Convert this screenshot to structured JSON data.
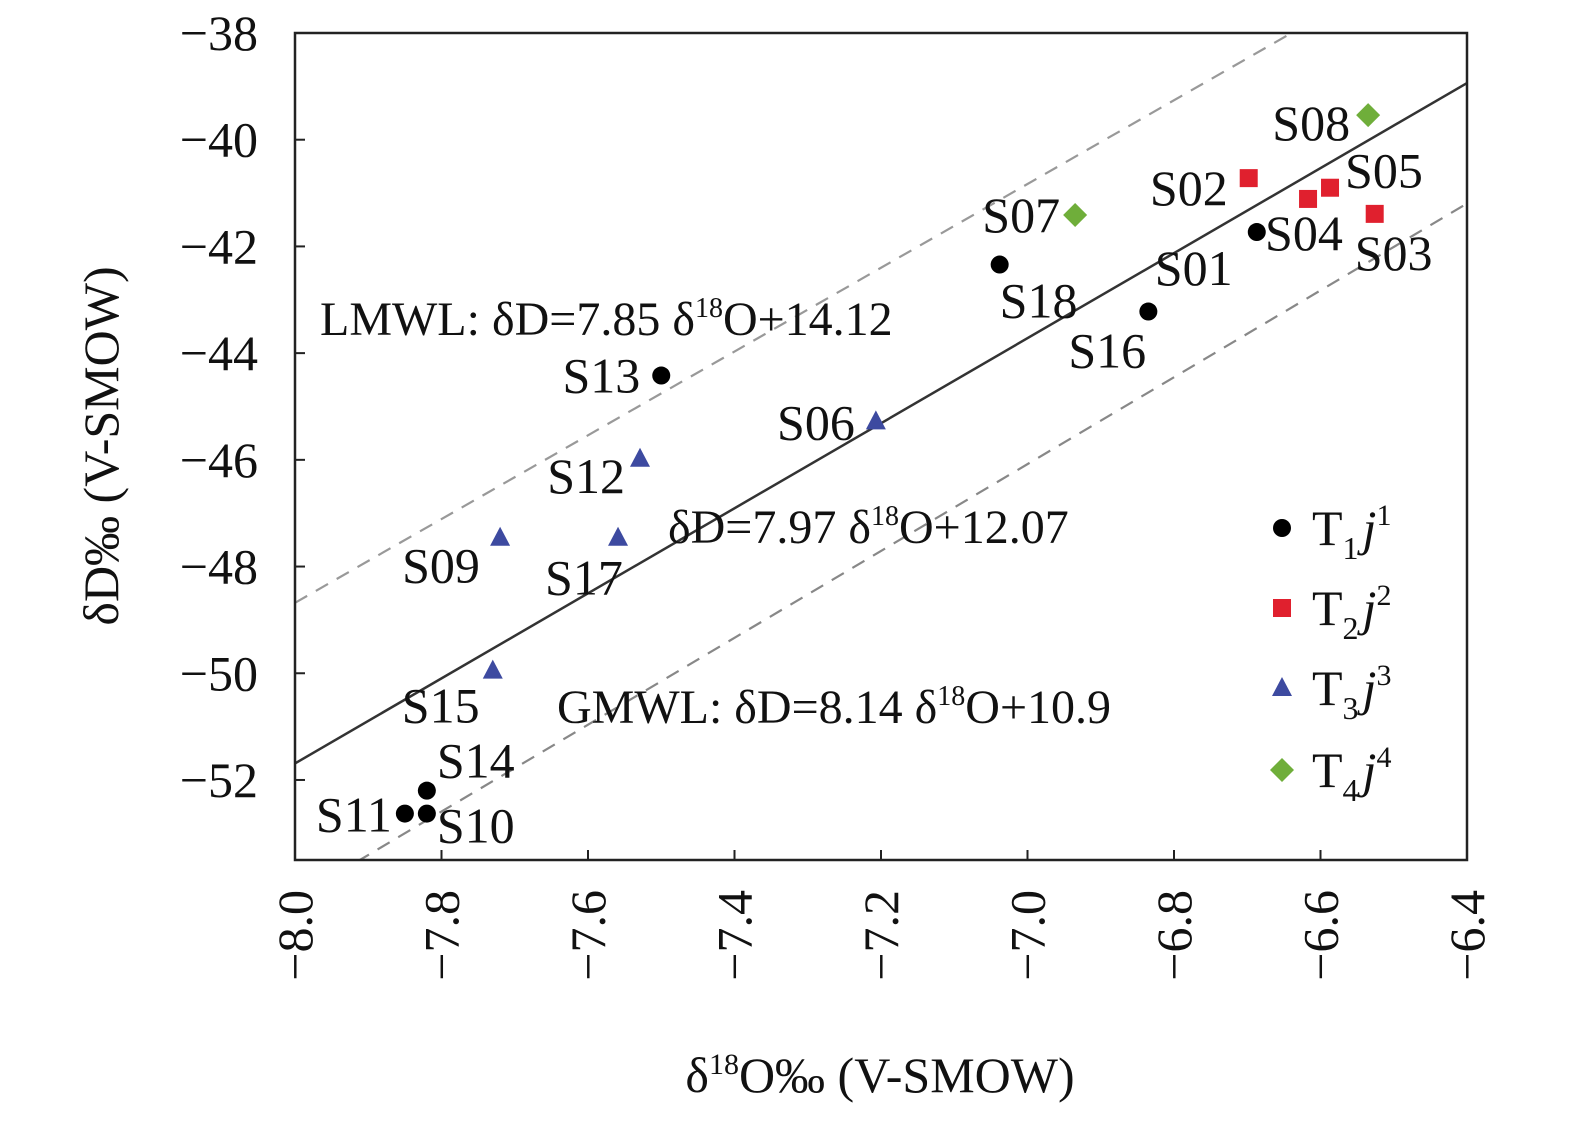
{
  "chart_data": {
    "type": "scatter",
    "xlabel": "δ18O‰ (V-SMOW)",
    "xlabel_parts": {
      "delta": "δ",
      "sup": "18",
      "rest": "O‰ (V-SMOW)"
    },
    "ylabel": "δD‰ (V-SMOW)",
    "xlim": [
      -8.0,
      -6.4
    ],
    "ylim": [
      -53.5,
      -38
    ],
    "xticks": [
      "−8.0",
      "−7.8",
      "−7.6",
      "−7.4",
      "−7.2",
      "−7.0",
      "−6.8",
      "−6.6",
      "−6.4"
    ],
    "xtick_values": [
      -8.0,
      -7.8,
      -7.6,
      -7.4,
      -7.2,
      -7.0,
      -6.8,
      -6.6,
      -6.4
    ],
    "yticks": [
      "−38",
      "−40",
      "−42",
      "−44",
      "−46",
      "−48",
      "−50",
      "−52"
    ],
    "ytick_values": [
      -38,
      -40,
      -42,
      -44,
      -46,
      -48,
      -50,
      -52
    ],
    "grid": false,
    "legend_position": "right",
    "series": [
      {
        "name": "T1j1",
        "base": "T",
        "sub": "1",
        "it": "j",
        "sup": "1",
        "marker": "circle",
        "color": "#000000",
        "points": [
          {
            "label": "S01",
            "x": -6.687,
            "y": -41.73
          },
          {
            "label": "S18",
            "x": -7.038,
            "y": -42.34
          },
          {
            "label": "S16",
            "x": -6.835,
            "y": -43.22
          },
          {
            "label": "S13",
            "x": -7.5,
            "y": -44.42
          },
          {
            "label": "S14",
            "x": -7.82,
            "y": -52.2
          },
          {
            "label": "S10",
            "x": -7.82,
            "y": -52.63
          },
          {
            "label": "S11",
            "x": -7.85,
            "y": -52.63
          }
        ]
      },
      {
        "name": "T2j2",
        "base": "T",
        "sub": "2",
        "it": "j",
        "sup": "2",
        "marker": "square",
        "color": "#e0202e",
        "points": [
          {
            "label": "S02",
            "x": -6.698,
            "y": -40.72
          },
          {
            "label": "S05",
            "x": -6.587,
            "y": -40.9
          },
          {
            "label": "S04",
            "x": -6.617,
            "y": -41.11
          },
          {
            "label": "S03",
            "x": -6.526,
            "y": -41.39
          }
        ]
      },
      {
        "name": "T3j3",
        "base": "T",
        "sub": "3",
        "it": "j",
        "sup": "3",
        "marker": "triangle",
        "color": "#3d4aa0",
        "points": [
          {
            "label": "S06",
            "x": -7.207,
            "y": -45.28
          },
          {
            "label": "S12",
            "x": -7.529,
            "y": -45.98
          },
          {
            "label": "S17",
            "x": -7.559,
            "y": -47.46
          },
          {
            "label": "S09",
            "x": -7.72,
            "y": -47.46
          },
          {
            "label": "S15",
            "x": -7.73,
            "y": -49.95
          }
        ]
      },
      {
        "name": "T4j4",
        "base": "T",
        "sub": "4",
        "it": "j",
        "sup": "4",
        "marker": "diamond",
        "color": "#6fae3a",
        "points": [
          {
            "label": "S08",
            "x": -6.535,
            "y": -39.54
          },
          {
            "label": "S07",
            "x": -6.935,
            "y": -41.41
          }
        ]
      }
    ],
    "lines": [
      {
        "name": "fit",
        "slope": 7.97,
        "intercept": 12.07,
        "style": "solid",
        "color": "#333333",
        "label_a": "δD=7.97 δ",
        "label_sup": "18",
        "label_b": "O+12.07"
      },
      {
        "name": "LMWL",
        "slope": 7.85,
        "intercept": 14.12,
        "style": "dashed",
        "color": "#999999",
        "label_a": "LMWL: δD=7.85 δ",
        "label_sup": "18",
        "label_b": "O+14.12"
      },
      {
        "name": "GMWL",
        "slope": 8.14,
        "intercept": 10.9,
        "style": "dashed",
        "color": "#888888",
        "label_a": "GMWL: δD=8.14 δ",
        "label_sup": "18",
        "label_b": "O+10.9"
      }
    ]
  }
}
